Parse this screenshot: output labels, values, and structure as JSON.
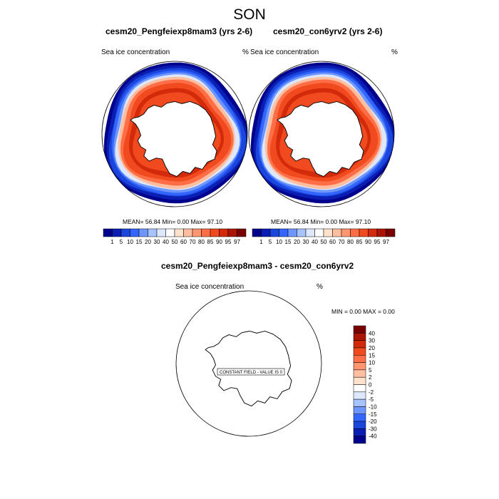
{
  "page": {
    "title": "SON"
  },
  "panels": [
    {
      "id": "left",
      "title": "cesm20_Pengfeiexp8mam3 (yrs 2-6)",
      "variable": "Sea ice concentration",
      "units": "%",
      "stats": "MEAN=  56.84  Min=   0.00  Max=  97.10",
      "colorbar_labels": [
        "1",
        "5",
        "10",
        "15",
        "20",
        "30",
        "40",
        "50",
        "60",
        "70",
        "80",
        "85",
        "90",
        "95",
        "97"
      ]
    },
    {
      "id": "right",
      "title": "cesm20_con6yrv2 (yrs 2-6)",
      "variable": "Sea ice concentration",
      "units": "%",
      "stats": "MEAN=  56.84  Min=   0.00  Max=  97.10",
      "colorbar_labels": [
        "1",
        "5",
        "10",
        "15",
        "20",
        "30",
        "40",
        "50",
        "60",
        "70",
        "80",
        "85",
        "90",
        "95",
        "97"
      ]
    }
  ],
  "diff": {
    "title": "cesm20_Pengfeiexp8mam3 - cesm20_con6yrv2",
    "variable": "Sea ice concentration",
    "units": "%",
    "minmax": "MIN =   0.00 MAX =   0.00",
    "constant_label": "CONSTANT FIELD - VALUE IS 0",
    "colorbar_labels": [
      "40",
      "30",
      "20",
      "15",
      "10",
      "5",
      "2",
      "0",
      "-2",
      "-5",
      "-10",
      "-15",
      "-20",
      "-30",
      "-40"
    ]
  },
  "colors": {
    "abs_scale": [
      "#00008c",
      "#0a1eb4",
      "#1a46dc",
      "#3366ff",
      "#6e96ff",
      "#a8c4ff",
      "#dde8ff",
      "#ffffff",
      "#ffe2cc",
      "#ffbea0",
      "#ff9670",
      "#ff6e46",
      "#f04a1e",
      "#d22a0a",
      "#aa1400",
      "#780000"
    ],
    "diff_scale": [
      "#780000",
      "#aa1400",
      "#d22a0a",
      "#f04a1e",
      "#ff6e46",
      "#ff9670",
      "#ffbea0",
      "#ffe2cc",
      "#ffffff",
      "#dde8ff",
      "#a8c4ff",
      "#6e96ff",
      "#3366ff",
      "#1a46dc",
      "#0a1eb4",
      "#00008c"
    ]
  },
  "chart_data": [
    {
      "type": "heatmap",
      "projection": "south-polar-stereographic",
      "title": "cesm20_Pengfeiexp8mam3 (yrs 2-6)",
      "variable": "Sea ice concentration",
      "units": "%",
      "stats": {
        "mean": 56.84,
        "min": 0.0,
        "max": 97.1
      },
      "levels": [
        1,
        5,
        10,
        15,
        20,
        30,
        40,
        50,
        60,
        70,
        80,
        85,
        90,
        95,
        97
      ]
    },
    {
      "type": "heatmap",
      "projection": "south-polar-stereographic",
      "title": "cesm20_con6yrv2 (yrs 2-6)",
      "variable": "Sea ice concentration",
      "units": "%",
      "stats": {
        "mean": 56.84,
        "min": 0.0,
        "max": 97.1
      },
      "levels": [
        1,
        5,
        10,
        15,
        20,
        30,
        40,
        50,
        60,
        70,
        80,
        85,
        90,
        95,
        97
      ]
    },
    {
      "type": "heatmap",
      "projection": "south-polar-stereographic",
      "title": "cesm20_Pengfeiexp8mam3 - cesm20_con6yrv2",
      "variable": "Sea ice concentration",
      "units": "%",
      "stats": {
        "min": 0.0,
        "max": 0.0
      },
      "levels": [
        40,
        30,
        20,
        15,
        10,
        5,
        2,
        0,
        -2,
        -5,
        -10,
        -15,
        -20,
        -30,
        -40
      ]
    }
  ]
}
